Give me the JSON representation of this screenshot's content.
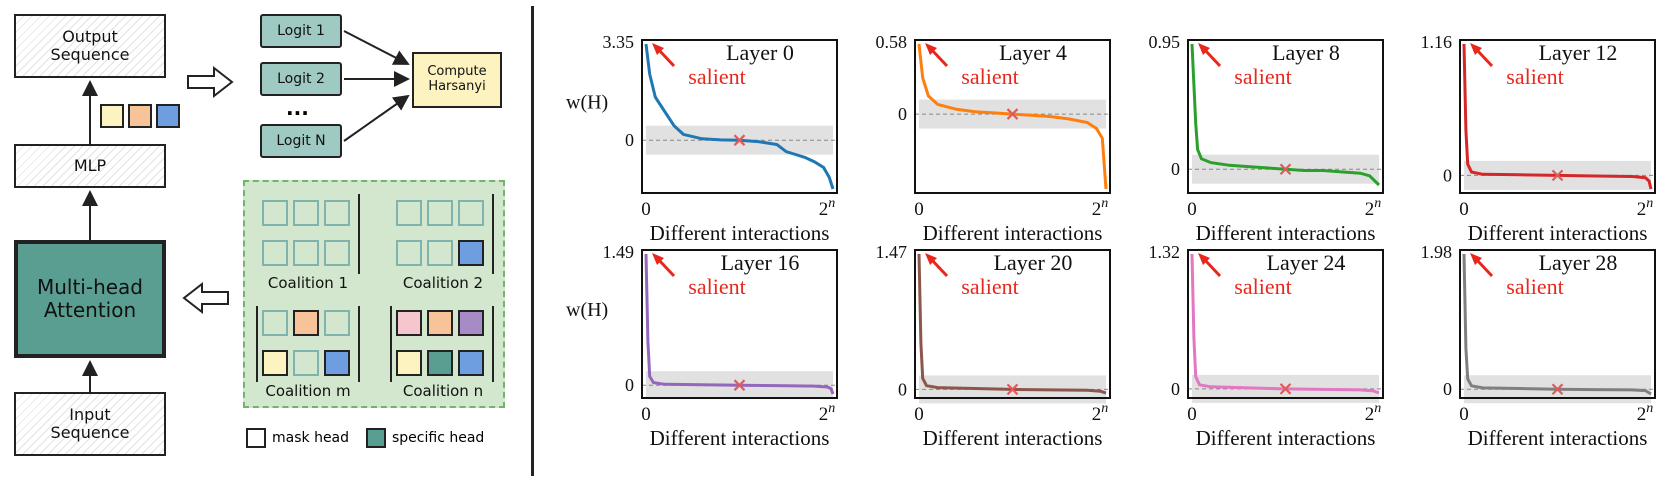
{
  "left": {
    "output_sequence": "Output\nSequence",
    "mlp": "MLP",
    "attention": "Multi-head\nAttention",
    "input_sequence": "Input\nSequence",
    "logits": [
      "Logit 1",
      "Logit 2",
      "Logit N"
    ],
    "ellipsis": "...",
    "compute": "Compute\nHarsanyi",
    "coalitions": [
      "Coalition 1",
      "Coalition 2",
      "Coalition m",
      "Coalition n"
    ],
    "legend": {
      "mask": "mask head",
      "specific": "specific head"
    },
    "colors": {
      "yellow": "#fdf3c0",
      "orange": "#f7c49a",
      "blue": "#6f9ee0",
      "pink": "#f6c6cf",
      "purple": "#a78bc6",
      "teal": "#5a9e92",
      "green_panel": "#d3e6ce",
      "attention": "#5a9e92",
      "logit": "#9fc9c3"
    }
  },
  "chart_data": [
    {
      "type": "line",
      "title": "Layer 0",
      "ymax_label": "3.35",
      "ymax": 3.35,
      "ymin": -1.7,
      "color": "#1f77b4",
      "annotation": "salient",
      "ylabel": "w(H)",
      "xtick_start": "0",
      "xtick_end": "2^n",
      "x": [
        0,
        0.02,
        0.05,
        0.1,
        0.15,
        0.2,
        0.3,
        0.4,
        0.5,
        0.6,
        0.7,
        0.75,
        0.8,
        0.85,
        0.9,
        0.95,
        0.98,
        1.0
      ],
      "values": [
        3.35,
        2.3,
        1.5,
        1.0,
        0.5,
        0.2,
        0.05,
        0.01,
        0.0,
        -0.05,
        -0.15,
        -0.4,
        -0.5,
        -0.6,
        -0.75,
        -0.95,
        -1.3,
        -1.7
      ]
    },
    {
      "type": "line",
      "title": "Layer 4",
      "ymax_label": "0.58",
      "ymax": 0.58,
      "ymin": -0.62,
      "color": "#ff7f0e",
      "annotation": "salient",
      "ylabel": "",
      "xtick_start": "0",
      "xtick_end": "2^n",
      "x": [
        0,
        0.02,
        0.05,
        0.1,
        0.2,
        0.3,
        0.4,
        0.5,
        0.6,
        0.7,
        0.8,
        0.9,
        0.95,
        0.98,
        1.0
      ],
      "values": [
        0.58,
        0.3,
        0.15,
        0.08,
        0.04,
        0.02,
        0.01,
        0.0,
        -0.01,
        -0.02,
        -0.04,
        -0.07,
        -0.12,
        -0.2,
        -0.62
      ]
    },
    {
      "type": "line",
      "title": "Layer 8",
      "ymax_label": "0.95",
      "ymax": 0.95,
      "ymin": -0.15,
      "color": "#2ca02c",
      "annotation": "salient",
      "ylabel": "",
      "xtick_start": "0",
      "xtick_end": "2^n",
      "x": [
        0,
        0.02,
        0.03,
        0.05,
        0.1,
        0.2,
        0.3,
        0.4,
        0.5,
        0.6,
        0.7,
        0.8,
        0.9,
        0.95,
        1.0
      ],
      "values": [
        0.95,
        0.35,
        0.15,
        0.08,
        0.05,
        0.03,
        0.02,
        0.01,
        0.0,
        -0.01,
        -0.01,
        -0.02,
        -0.03,
        -0.05,
        -0.12
      ]
    },
    {
      "type": "line",
      "title": "Layer 12",
      "ymax_label": "1.16",
      "ymax": 1.16,
      "ymin": -0.12,
      "color": "#d62728",
      "annotation": "salient",
      "ylabel": "",
      "xtick_start": "0",
      "xtick_end": "2^n",
      "x": [
        0,
        0.01,
        0.02,
        0.04,
        0.1,
        0.3,
        0.5,
        0.7,
        0.9,
        0.97,
        0.99,
        1.0
      ],
      "values": [
        1.16,
        0.4,
        0.1,
        0.03,
        0.01,
        0.005,
        0.0,
        -0.005,
        -0.01,
        -0.02,
        -0.05,
        -0.12
      ]
    },
    {
      "type": "line",
      "title": "Layer 16",
      "ymax_label": "1.49",
      "ymax": 1.49,
      "ymin": -0.1,
      "color": "#9467bd",
      "annotation": "salient",
      "ylabel": "w(H)",
      "xtick_start": "0",
      "xtick_end": "2^n",
      "x": [
        0,
        0.01,
        0.02,
        0.04,
        0.1,
        0.3,
        0.5,
        0.7,
        0.9,
        0.97,
        0.99,
        1.0
      ],
      "values": [
        1.49,
        0.5,
        0.1,
        0.03,
        0.01,
        0.005,
        0.0,
        -0.005,
        -0.01,
        -0.02,
        -0.04,
        -0.1
      ]
    },
    {
      "type": "line",
      "title": "Layer 20",
      "ymax_label": "1.47",
      "ymax": 1.47,
      "ymin": -0.05,
      "color": "#8c564b",
      "annotation": "salient",
      "ylabel": "",
      "xtick_start": "0",
      "xtick_end": "2^n",
      "x": [
        0,
        0.01,
        0.02,
        0.04,
        0.1,
        0.3,
        0.5,
        0.7,
        0.9,
        0.97,
        1.0
      ],
      "values": [
        1.47,
        0.5,
        0.12,
        0.04,
        0.02,
        0.01,
        0.0,
        -0.005,
        -0.01,
        -0.02,
        -0.04
      ]
    },
    {
      "type": "line",
      "title": "Layer 24",
      "ymax_label": "1.32",
      "ymax": 1.32,
      "ymin": -0.05,
      "color": "#e377c2",
      "annotation": "salient",
      "ylabel": "",
      "xtick_start": "0",
      "xtick_end": "2^n",
      "x": [
        0,
        0.01,
        0.02,
        0.04,
        0.1,
        0.3,
        0.5,
        0.7,
        0.9,
        0.97,
        1.0
      ],
      "values": [
        1.32,
        0.5,
        0.12,
        0.04,
        0.02,
        0.01,
        0.0,
        -0.005,
        -0.01,
        -0.02,
        -0.04
      ]
    },
    {
      "type": "line",
      "title": "Layer 28",
      "ymax_label": "1.98",
      "ymax": 1.98,
      "ymin": -0.07,
      "color": "#7f7f7f",
      "annotation": "salient",
      "ylabel": "",
      "xtick_start": "0",
      "xtick_end": "2^n",
      "x": [
        0,
        0.01,
        0.02,
        0.04,
        0.1,
        0.3,
        0.5,
        0.7,
        0.9,
        0.97,
        1.0
      ],
      "values": [
        1.98,
        0.6,
        0.15,
        0.05,
        0.02,
        0.01,
        0.0,
        -0.005,
        -0.01,
        -0.02,
        -0.07
      ]
    }
  ],
  "xlabel": "Different interactions"
}
